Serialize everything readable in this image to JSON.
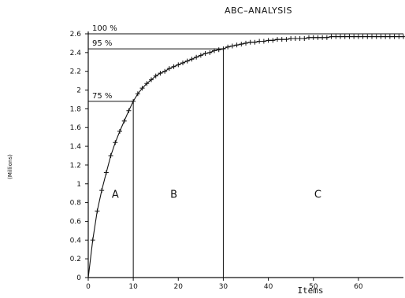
{
  "chart_data": {
    "type": "line",
    "title": "ABC–ANALYSIS",
    "xlabel": "Items",
    "ylabel": "(Millions)",
    "xlim": [
      0,
      70
    ],
    "ylim": [
      0,
      2.6
    ],
    "x_ticks": [
      0,
      10,
      20,
      30,
      40,
      50,
      60
    ],
    "x_tick_labels": [
      "0",
      "10",
      "20",
      "30",
      "40",
      "50",
      "60"
    ],
    "y_ticks": [
      0,
      0.2,
      0.4,
      0.6,
      0.8,
      1,
      1.2,
      1.4,
      1.6,
      1.8,
      2,
      2.2,
      2.4,
      2.6
    ],
    "y_tick_labels": [
      "0",
      "0.2",
      "0.4",
      "0.6",
      "0.8",
      "1",
      "1.2",
      "1.4",
      "1.6",
      "1.8",
      "2",
      "2.2",
      "2.4",
      "2.6"
    ],
    "grid": false,
    "series": [
      {
        "marker": "+",
        "x": [
          1,
          2,
          3,
          4,
          5,
          6,
          7,
          8,
          9,
          10,
          11,
          12,
          13,
          14,
          15,
          16,
          17,
          18,
          19,
          20,
          21,
          22,
          23,
          24,
          25,
          26,
          27,
          28,
          29,
          30,
          31,
          32,
          33,
          34,
          35,
          36,
          37,
          38,
          39,
          40,
          41,
          42,
          43,
          44,
          45,
          46,
          47,
          48,
          49,
          50,
          51,
          52,
          53,
          54,
          55,
          56,
          57,
          58,
          59,
          60,
          61,
          62,
          63,
          64,
          65,
          66,
          67,
          68,
          69,
          70
        ],
        "y": [
          0.4,
          0.71,
          0.93,
          1.12,
          1.3,
          1.44,
          1.56,
          1.67,
          1.78,
          1.88,
          1.96,
          2.02,
          2.07,
          2.11,
          2.15,
          2.18,
          2.2,
          2.23,
          2.25,
          2.27,
          2.29,
          2.31,
          2.33,
          2.35,
          2.37,
          2.39,
          2.4,
          2.42,
          2.43,
          2.44,
          2.46,
          2.47,
          2.48,
          2.49,
          2.5,
          2.51,
          2.51,
          2.52,
          2.52,
          2.53,
          2.53,
          2.54,
          2.54,
          2.54,
          2.55,
          2.55,
          2.55,
          2.55,
          2.56,
          2.56,
          2.56,
          2.56,
          2.56,
          2.57,
          2.57,
          2.57,
          2.57,
          2.57,
          2.57,
          2.57,
          2.57,
          2.57,
          2.57,
          2.57,
          2.57,
          2.57,
          2.57,
          2.57,
          2.57,
          2.57
        ]
      }
    ],
    "thresholds": [
      {
        "label": "100 %",
        "x": 70,
        "y": 2.6
      },
      {
        "label": "95 %",
        "x": 30,
        "y": 2.44
      },
      {
        "label": "75 %",
        "x": 10,
        "y": 1.88
      }
    ],
    "regions": [
      {
        "label": "A",
        "x": 6,
        "y": 0.85
      },
      {
        "label": "B",
        "x": 19,
        "y": 0.85
      },
      {
        "label": "C",
        "x": 51,
        "y": 0.85
      }
    ]
  }
}
